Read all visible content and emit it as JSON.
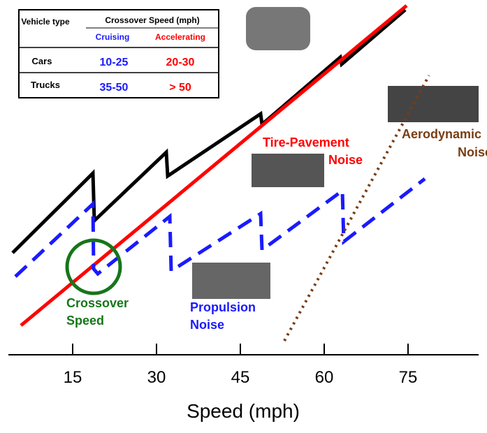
{
  "table": {
    "title": "Crossover Speed (mph)",
    "header": [
      "Vehicle type",
      "Cruising",
      "Accelerating"
    ],
    "rows": [
      [
        "Cars",
        "10-25",
        "20-30"
      ],
      [
        "Trucks",
        "35-50",
        "> 50"
      ]
    ]
  },
  "labels": {
    "tire": [
      "Tire-Pavement",
      "Noise"
    ],
    "propulsion": [
      "Propulsion",
      "Noise"
    ],
    "crossover": [
      "Crossover",
      "Speed"
    ],
    "aero": [
      "Aerodynamic",
      "Noise"
    ]
  },
  "axis": {
    "xticks": [
      15,
      30,
      45,
      60,
      75
    ],
    "xlabel": "Speed (mph)"
  }
}
